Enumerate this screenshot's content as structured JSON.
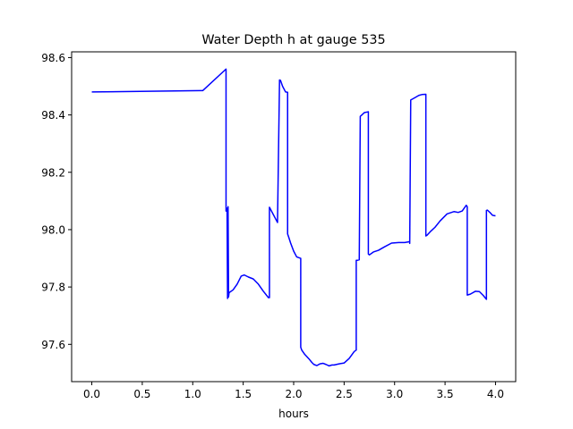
{
  "chart_data": {
    "type": "line",
    "title": "Water Depth h at gauge 535",
    "xlabel": "hours",
    "ylabel": "",
    "xlim": [
      -0.2,
      4.2
    ],
    "ylim": [
      97.47,
      98.62
    ],
    "x_ticks": [
      0.0,
      0.5,
      1.0,
      1.5,
      2.0,
      2.5,
      3.0,
      3.5,
      4.0
    ],
    "x_tick_labels": [
      "0.0",
      "0.5",
      "1.0",
      "1.5",
      "2.0",
      "2.5",
      "3.0",
      "3.5",
      "4.0"
    ],
    "y_ticks": [
      97.6,
      97.8,
      98.0,
      98.2,
      98.4,
      98.6
    ],
    "y_tick_labels": [
      "97.6",
      "97.8",
      "98.0",
      "98.2",
      "98.4",
      "98.6"
    ],
    "grid": false,
    "legend": "none",
    "series": [
      {
        "color": "#0000ff",
        "x": [
          0.0,
          1.08,
          1.1,
          1.33,
          1.33,
          1.34,
          1.345,
          1.35,
          1.355,
          1.36,
          1.4,
          1.44,
          1.48,
          1.51,
          1.55,
          1.6,
          1.65,
          1.7,
          1.75,
          1.76,
          1.76,
          1.84,
          1.84,
          1.86,
          1.87,
          1.89,
          1.92,
          1.94,
          1.94,
          1.95,
          1.97,
          2.0,
          2.03,
          2.07,
          2.07,
          2.08,
          2.11,
          2.15,
          2.18,
          2.2,
          2.23,
          2.26,
          2.29,
          2.32,
          2.35,
          2.38,
          2.4,
          2.45,
          2.5,
          2.55,
          2.6,
          2.62,
          2.62,
          2.63,
          2.65,
          2.66,
          2.67,
          2.7,
          2.74,
          2.74,
          2.74,
          2.75,
          2.79,
          2.84,
          2.9,
          2.97,
          3.04,
          3.1,
          3.15,
          3.15,
          3.16,
          3.2,
          3.24,
          3.27,
          3.31,
          3.31,
          3.32,
          3.36,
          3.4,
          3.45,
          3.52,
          3.59,
          3.63,
          3.67,
          3.71,
          3.72,
          3.72,
          3.75,
          3.8,
          3.84,
          3.88,
          3.91,
          3.91,
          3.92,
          3.95,
          3.97,
          4.0
        ],
        "y": [
          98.48,
          98.485,
          98.485,
          98.56,
          98.065,
          98.075,
          97.76,
          98.08,
          97.765,
          97.78,
          97.79,
          97.81,
          97.838,
          97.842,
          97.835,
          97.828,
          97.81,
          97.785,
          97.763,
          97.763,
          98.078,
          98.025,
          98.025,
          98.522,
          98.52,
          98.5,
          98.48,
          98.479,
          97.985,
          97.975,
          97.953,
          97.925,
          97.905,
          97.9,
          97.59,
          97.58,
          97.565,
          97.55,
          97.537,
          97.53,
          97.526,
          97.532,
          97.534,
          97.53,
          97.525,
          97.528,
          97.528,
          97.532,
          97.535,
          97.551,
          97.575,
          97.58,
          97.893,
          97.893,
          97.895,
          98.395,
          98.398,
          98.408,
          98.411,
          98.408,
          97.915,
          97.912,
          97.922,
          97.928,
          97.94,
          97.953,
          97.955,
          97.955,
          97.958,
          97.952,
          98.452,
          98.46,
          98.468,
          98.471,
          98.472,
          97.978,
          97.98,
          97.995,
          98.008,
          98.03,
          98.055,
          98.063,
          98.06,
          98.065,
          98.085,
          98.08,
          97.772,
          97.775,
          97.785,
          97.784,
          97.77,
          97.757,
          98.067,
          98.068,
          98.058,
          98.05,
          98.048
        ]
      }
    ]
  }
}
